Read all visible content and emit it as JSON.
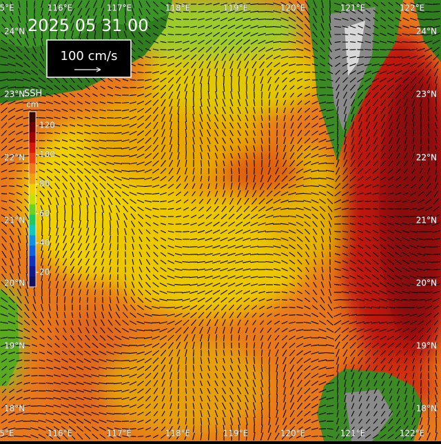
{
  "header": {
    "date": "2025 05 31 00"
  },
  "scale": {
    "label": "100 cm/s"
  },
  "colorbar": {
    "title": "SSH",
    "unit": "cm",
    "ticks": [
      120,
      100,
      80,
      60,
      40,
      20
    ]
  },
  "map": {
    "top_lon_labels": [
      "5°E",
      "116°E",
      "117°E",
      "118°E",
      "119°E",
      "120°E",
      "121°E",
      "122°E"
    ],
    "bottom_lon_labels": [
      "5°E",
      "116°E",
      "117°E",
      "118°E",
      "119°E",
      "120°E",
      "121°E",
      "122°E"
    ],
    "left_lat_labels": [
      "24°N",
      "23°N",
      "22°N",
      "21°N",
      "20°N",
      "19°N",
      "18°N"
    ],
    "right_lat_labels": [
      "24°N",
      "23°N",
      "22°N",
      "21°N",
      "20°N",
      "19°N",
      "18°N"
    ]
  }
}
